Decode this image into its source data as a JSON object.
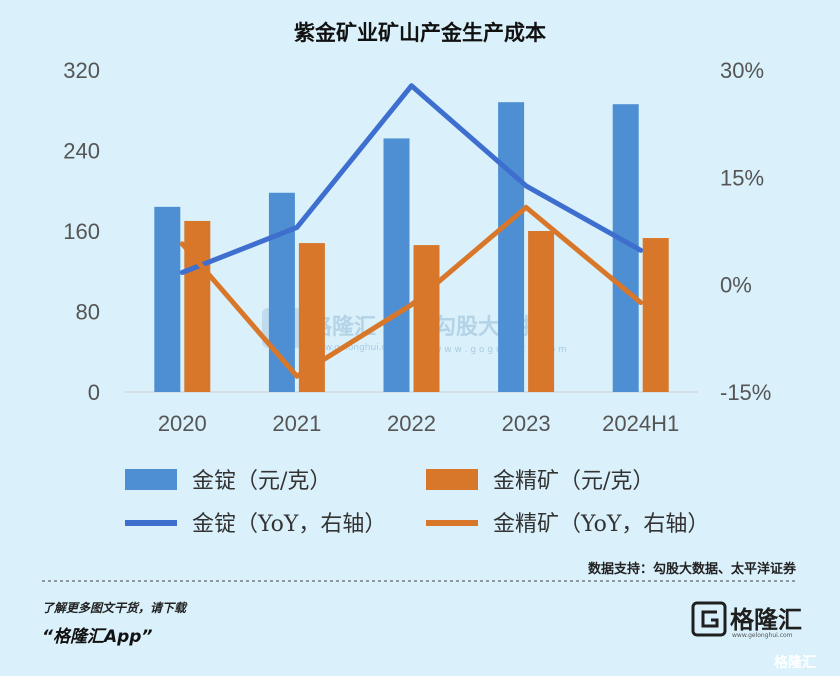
{
  "chart_data": {
    "type": "bar",
    "title": "紫金矿业矿山产金生产成本",
    "categories": [
      "2020",
      "2021",
      "2022",
      "2023",
      "2024H1"
    ],
    "y_left": {
      "ticks": [
        "320",
        "240",
        "160",
        "80",
        "0"
      ],
      "ylim": [
        0,
        320
      ]
    },
    "y_right": {
      "ticks": [
        "30%",
        "15%",
        "0%",
        "-15%"
      ],
      "ylim": [
        -15,
        30
      ],
      "unit": "%"
    },
    "series": [
      {
        "name": "金锭（元/克）",
        "kind": "bar",
        "axis": "left",
        "color": "#4d8fd2",
        "values": [
          184,
          198,
          252,
          288,
          286
        ]
      },
      {
        "name": "金精矿（元/克）",
        "kind": "bar",
        "axis": "left",
        "color": "#d8772a",
        "values": [
          170,
          148,
          146,
          160,
          153
        ]
      },
      {
        "name": "金锭（YoY，右轴）",
        "kind": "line",
        "axis": "right",
        "color": "#3e6fcf",
        "values": [
          1.7,
          8.0,
          27.8,
          13.8,
          4.8
        ]
      },
      {
        "name": "金精矿（YoY，右轴）",
        "kind": "line",
        "axis": "right",
        "color": "#d8772a",
        "values": [
          5.7,
          -12.8,
          -2.8,
          10.8,
          -2.5
        ]
      }
    ],
    "grid": false,
    "legend_placement": "bottom"
  },
  "watermark": {
    "left": "格隆汇",
    "left_sub": "www.gelonghui.com",
    "right": "勾股大数据",
    "right_sub": "w w w . g o g u d a t a . c o m"
  },
  "source": "数据支持：勾股大数据、太平洋证券",
  "footer": {
    "line1": "了解更多图文干货，请下载",
    "line2": "“格隆汇App”",
    "brand": "格隆汇",
    "brand_sub": "www.gelonghui.com",
    "corner": "格隆汇"
  }
}
